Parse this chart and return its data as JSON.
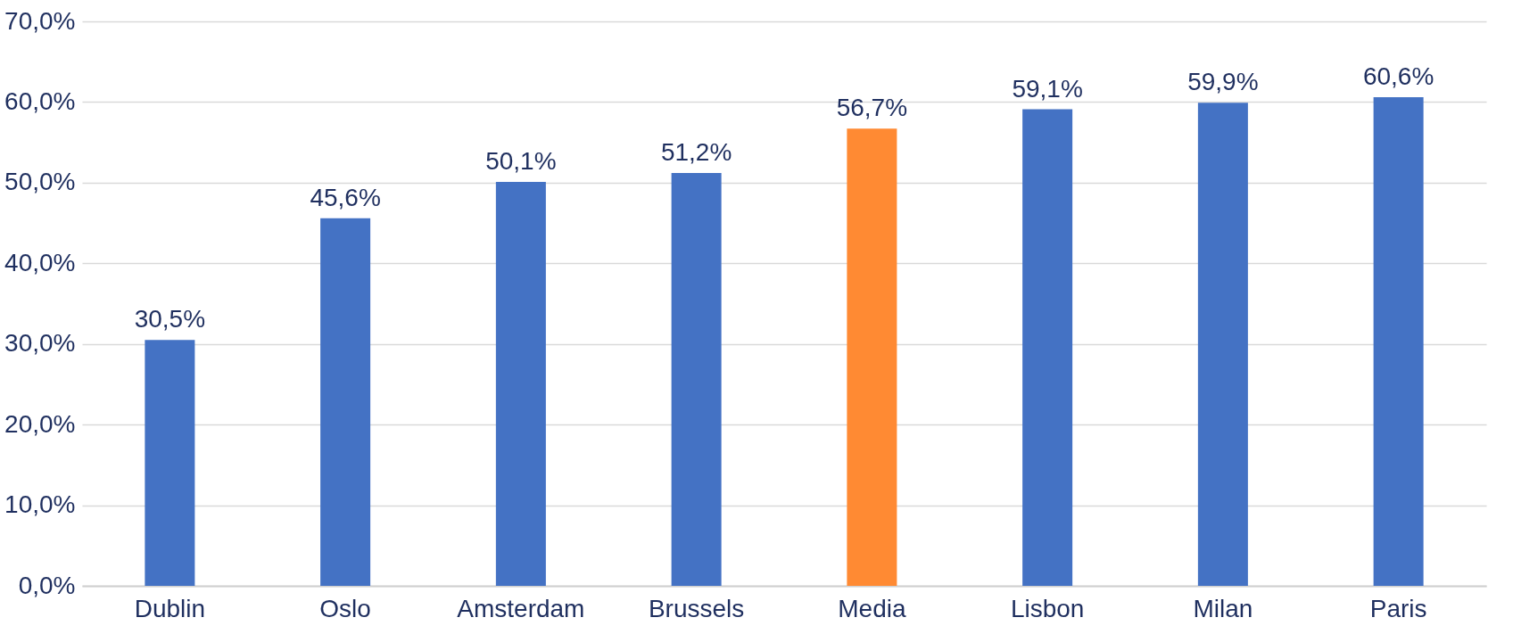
{
  "chart_data": {
    "type": "bar",
    "categories": [
      "Dublin",
      "Oslo",
      "Amsterdam",
      "Brussels",
      "Media",
      "Lisbon",
      "Milan",
      "Paris"
    ],
    "values": [
      30.5,
      45.6,
      50.1,
      51.2,
      56.7,
      59.1,
      59.9,
      60.6
    ],
    "colors": [
      "#4472c4",
      "#4472c4",
      "#4472c4",
      "#4472c4",
      "#ff8a33",
      "#4472c4",
      "#4472c4",
      "#4472c4"
    ],
    "value_labels": [
      "30,5%",
      "45,6%",
      "50,1%",
      "51,2%",
      "56,7%",
      "59,1%",
      "59,9%",
      "60,6%"
    ],
    "ylim": [
      0,
      70
    ],
    "yticks": [
      {
        "value": 0,
        "label": "0,0%"
      },
      {
        "value": 10,
        "label": "10,0%"
      },
      {
        "value": 20,
        "label": "20,0%"
      },
      {
        "value": 30,
        "label": "30,0%"
      },
      {
        "value": 40,
        "label": "40,0%"
      },
      {
        "value": 50,
        "label": "50,0%"
      },
      {
        "value": 60,
        "label": "60,0%"
      },
      {
        "value": 70,
        "label": "70,0%"
      }
    ],
    "grid": "y"
  }
}
